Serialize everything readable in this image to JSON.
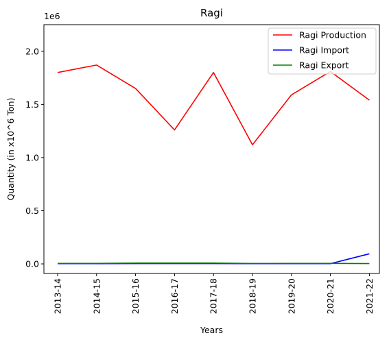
{
  "chart_data": {
    "type": "line",
    "title": "Ragi",
    "xlabel": "Years",
    "ylabel": "Quantity (in x10^6 Ton)",
    "offset_label": "1e6",
    "categories": [
      "2013-14",
      "2014-15",
      "2015-16",
      "2016-17",
      "2017-18",
      "2018-19",
      "2019-20",
      "2020-21",
      "2021-22"
    ],
    "yticks": [
      0.0,
      0.5,
      1.0,
      1.5,
      2.0
    ],
    "ytick_labels": [
      "0.0",
      "0.5",
      "1.0",
      "1.5",
      "2.0"
    ],
    "ylim": [
      -0.09,
      2.25
    ],
    "legend_position": "upper right",
    "grid": false,
    "series": [
      {
        "name": "Ragi Production",
        "color": "#ff0000",
        "values": [
          1.8,
          1.87,
          1.65,
          1.26,
          1.8,
          1.12,
          1.59,
          1.81,
          1.54
        ]
      },
      {
        "name": "Ragi Import",
        "color": "#0000ff",
        "values": [
          0.002,
          0.002,
          0.003,
          0.003,
          0.003,
          0.002,
          0.002,
          0.002,
          0.095
        ]
      },
      {
        "name": "Ragi Export",
        "color": "#008000",
        "values": [
          0.005,
          0.005,
          0.008,
          0.008,
          0.008,
          0.004,
          0.005,
          0.005,
          0.003
        ]
      }
    ]
  }
}
